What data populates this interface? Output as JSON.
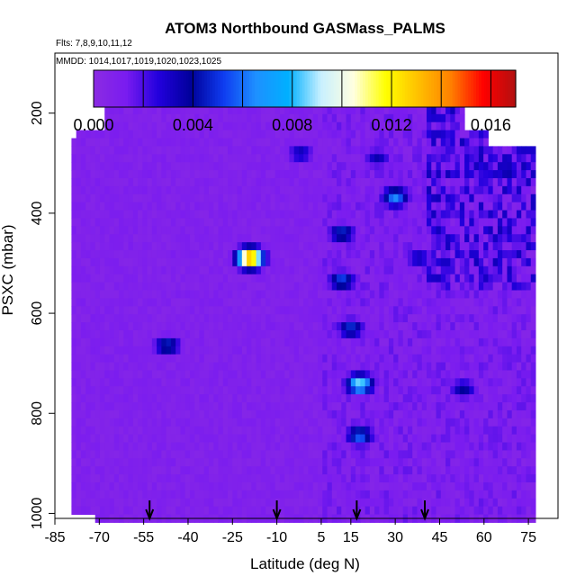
{
  "chart_data": {
    "type": "heatmap",
    "title": "ATOM3 Northbound GASMass_PALMS",
    "flights_note": "Flts: 7,8,9,10,11,12",
    "dates_note": "MMDD: 1014,1017,1019,1020,1023,1025",
    "xlabel": "Latitude (deg N)",
    "ylabel": "PSXC (mbar)",
    "xlim": [
      -85,
      85
    ],
    "ylim": [
      1010,
      80
    ],
    "y_reversed": true,
    "x_ticks": [
      -85,
      -70,
      -55,
      -40,
      -25,
      -10,
      5,
      15,
      30,
      45,
      60,
      75
    ],
    "y_ticks": [
      200,
      400,
      600,
      800,
      1000
    ],
    "colorbar": {
      "min": 0,
      "max": 0.017,
      "ticks": [
        "0.000",
        "0.004",
        "0.008",
        "0.012",
        "0.016"
      ],
      "tick_values": [
        0,
        0.004,
        0.008,
        0.012,
        0.016
      ],
      "segment_boundaries": [
        0.002,
        0.004,
        0.006,
        0.008,
        0.01,
        0.012,
        0.014,
        0.016
      ],
      "colors": [
        "#8b2be2",
        "#7a1cf0",
        "#2200dd",
        "#00009a",
        "#0f3cf0",
        "#1e90ff",
        "#00b0ff",
        "#c8f0ff",
        "#ffffe0",
        "#ffff00",
        "#ffc000",
        "#ff8000",
        "#ff0000",
        "#b21010"
      ]
    },
    "background_value": 0.0005,
    "enhancements": [
      {
        "lat": -19,
        "p": 490,
        "value": 0.015
      },
      {
        "lat": 18,
        "p": 742,
        "value": 0.009
      },
      {
        "lat": 30,
        "p": 368,
        "value": 0.0065
      },
      {
        "lat": 18,
        "p": 845,
        "value": 0.006
      },
      {
        "lat": -47,
        "p": 665,
        "value": 0.005
      },
      {
        "lat": 12,
        "p": 440,
        "value": 0.005
      },
      {
        "lat": 12,
        "p": 535,
        "value": 0.0055
      },
      {
        "lat": 15,
        "p": 630,
        "value": 0.005
      },
      {
        "lat": 68,
        "p": 315,
        "value": 0.004
      },
      {
        "lat": 24,
        "p": 290,
        "value": 0.0035
      },
      {
        "lat": 53,
        "p": 752,
        "value": 0.004
      },
      {
        "lat": 38,
        "p": 490,
        "value": 0.0035
      },
      {
        "lat": -2,
        "p": 280,
        "value": 0.0035
      }
    ],
    "arrow_latitudes": [
      -53,
      -10,
      17,
      40
    ]
  }
}
